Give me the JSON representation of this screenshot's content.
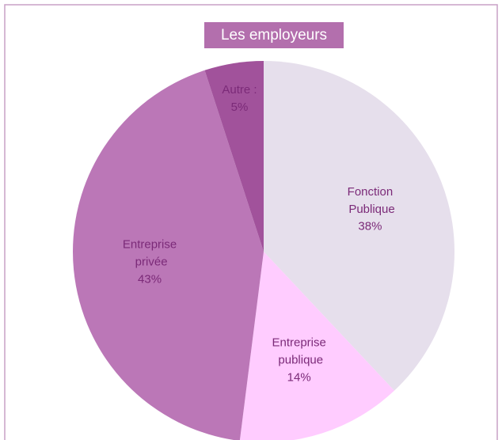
{
  "chart_data": {
    "type": "pie",
    "title": "Les employeurs",
    "categories": [
      "Fonction Publique",
      "Entreprise publique",
      "Entreprise privée",
      "Autre :"
    ],
    "values": [
      38,
      14,
      43,
      5
    ],
    "value_labels": [
      "38%",
      "14%",
      "43%",
      "5%"
    ],
    "colors": [
      "#e6dfec",
      "#ffccff",
      "#bb77b7",
      "#a1529b"
    ]
  }
}
